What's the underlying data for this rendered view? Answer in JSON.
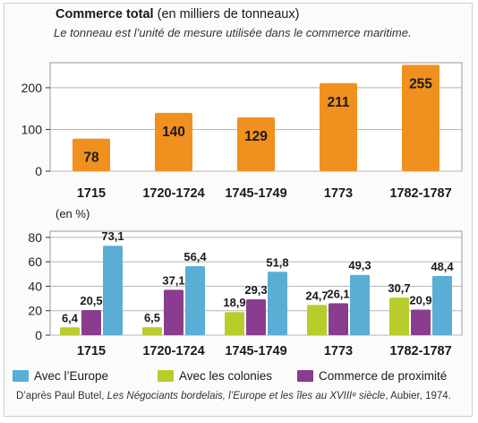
{
  "header": {
    "title": "Commerce total",
    "title_suffix": "(en milliers de tonneaux)",
    "subtitle": "Le tonneau est l’unité de mesure utilisée dans le commerce maritime."
  },
  "colors": {
    "orange": "#f0901f",
    "europe": "#5aaed6",
    "colonies": "#b8cd2c",
    "proximite": "#8a3d8f",
    "panel_bg": "#ffffff"
  },
  "chart_data": [
    {
      "type": "bar",
      "title": "Commerce total (en milliers de tonneaux)",
      "categories": [
        "1715",
        "1720-1724",
        "1745-1749",
        "1773",
        "1782-1787"
      ],
      "values": [
        78,
        140,
        129,
        211,
        255
      ],
      "value_labels": [
        "78",
        "140",
        "129",
        "211",
        "255"
      ],
      "ylim": [
        0,
        260
      ],
      "yticks": [
        0,
        100,
        200
      ],
      "grid": true
    },
    {
      "type": "bar",
      "ylabel": "(en %)",
      "categories": [
        "1715",
        "1720-1724",
        "1745-1749",
        "1773",
        "1782-1787"
      ],
      "ylim": [
        0,
        85
      ],
      "yticks": [
        0,
        20,
        40,
        60,
        80
      ],
      "grid": true,
      "series": [
        {
          "name": "Avec les colonies",
          "values": [
            6.4,
            6.5,
            18.9,
            24.7,
            30.7
          ],
          "labels": [
            "6,4",
            "6,5",
            "18,9",
            "24,7",
            "30,7"
          ]
        },
        {
          "name": "Commerce de proximité",
          "values": [
            20.5,
            37.1,
            29.3,
            26.1,
            20.9
          ],
          "labels": [
            "20,5",
            "37,1",
            "29,3",
            "26,1",
            "20,9"
          ]
        },
        {
          "name": "Avec l’Europe",
          "values": [
            73.1,
            56.4,
            51.8,
            49.3,
            48.4
          ],
          "labels": [
            "73,1",
            "56,4",
            "51,8",
            "49,3",
            "48,4"
          ]
        }
      ]
    }
  ],
  "legend": [
    {
      "label": "Avec l’Europe",
      "color": "#5aaed6"
    },
    {
      "label": "Avec les colonies",
      "color": "#b8cd2c"
    },
    {
      "label": "Commerce de proximité",
      "color": "#8a3d8f"
    }
  ],
  "source": {
    "prefix": "D’après Paul Butel,",
    "book": "Les Négociants bordelais, l’Europe et les îles au XVIIIᵉ siècle",
    "suffix": ", Aubier, 1974."
  }
}
